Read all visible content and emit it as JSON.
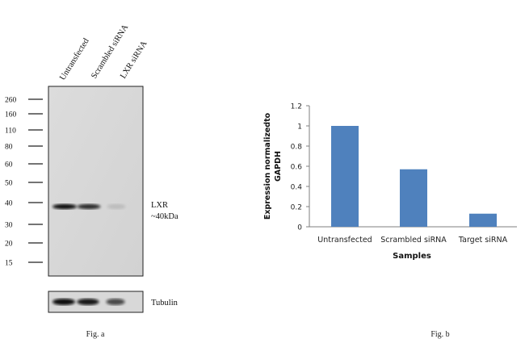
{
  "blot": {
    "lane_labels": [
      "Untransfected",
      "Scrambled siRNA",
      "LXR siRNA"
    ],
    "markers": [
      "260",
      "160",
      "110",
      "80",
      "60",
      "50",
      "40",
      "30",
      "20",
      "15"
    ],
    "band_label_line1": "LXR",
    "band_label_line2": "~40kDa",
    "loading_label": "Tubulin",
    "caption": "Fig. a",
    "band_intensity": [
      1.0,
      0.85,
      0.12
    ],
    "tubulin_intensity": [
      1.0,
      0.95,
      0.7
    ]
  },
  "chart_data": {
    "type": "bar",
    "categories": [
      "Untransfected",
      "Scrambled siRNA",
      "Target siRNA"
    ],
    "values": [
      1.0,
      0.57,
      0.13
    ],
    "ylabel_line1": "Expression normalizedto",
    "ylabel_line2": "GAPDH",
    "xlabel": "Samples",
    "ylim": [
      0,
      1.2
    ],
    "yticks": [
      "0",
      "0.2",
      "0.4",
      "0.6",
      "0.8",
      "1",
      "1.2"
    ],
    "bar_color": "#4f81bd",
    "grid": false,
    "caption": "Fig. b"
  }
}
